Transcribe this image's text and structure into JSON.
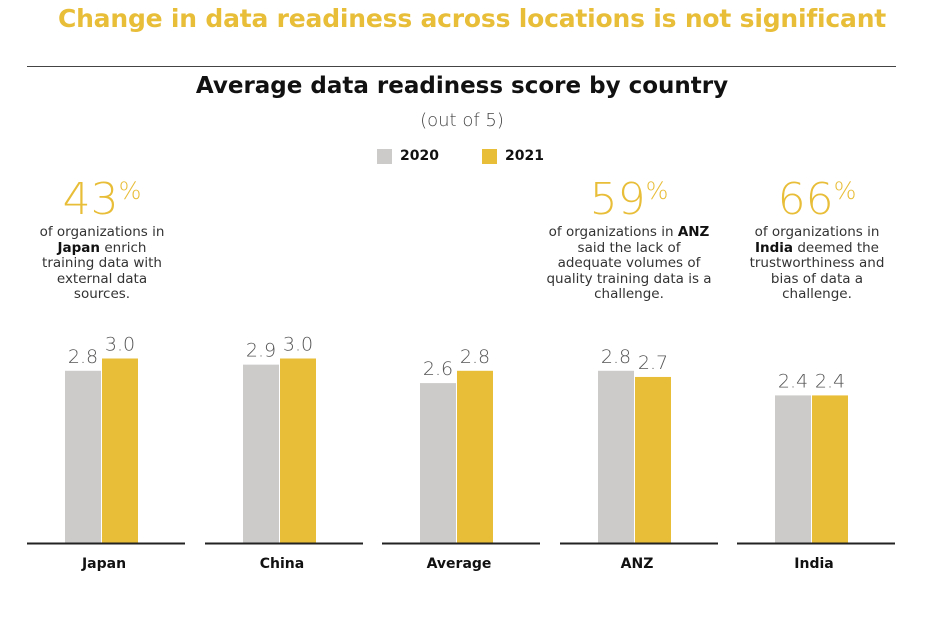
{
  "headline": "Change in data readiness across locations is not significant",
  "chart_data": {
    "type": "bar",
    "title": "Average data readiness score by country",
    "subtitle": "(out of 5)",
    "categories": [
      "Japan",
      "China",
      "Average",
      "ANZ",
      "India"
    ],
    "series": [
      {
        "name": "2020",
        "values": [
          2.8,
          2.9,
          2.6,
          2.8,
          2.4
        ],
        "labels": [
          "2.8",
          "2.9",
          "2.6",
          "2.8",
          "2.4"
        ],
        "color": "#cccbc9"
      },
      {
        "name": "2021",
        "values": [
          3.0,
          3.0,
          2.8,
          2.7,
          2.4
        ],
        "labels": [
          "3.0",
          "3.0",
          "2.8",
          "2.7",
          "2.4"
        ],
        "color": "#e8bd38"
      }
    ],
    "ylim": [
      0,
      5
    ],
    "legend": "top-center",
    "grid": false
  },
  "callouts": {
    "japan": {
      "number": "43",
      "pct": "%",
      "pre": "of organizations in ",
      "bold": "Japan",
      "post": " enrich training data with external data sources."
    },
    "anz": {
      "number": "59",
      "pct": "%",
      "pre": "of organizations in ",
      "bold": "ANZ",
      "post": " said the lack of adequate volumes of quality training data is a challenge."
    },
    "india": {
      "number": "66",
      "pct": "%",
      "pre": "of organizations in ",
      "bold": "India",
      "post": " deemed the trustworthiness and bias of data a challenge."
    }
  }
}
